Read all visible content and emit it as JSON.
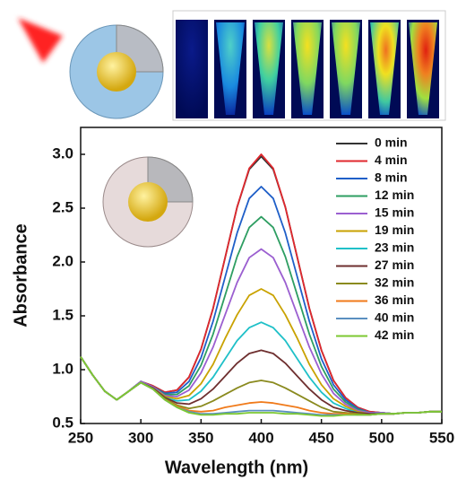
{
  "chart_data": {
    "type": "line",
    "x_label": "Wavelength (nm)",
    "y_label": "Absorbance",
    "x": [
      250,
      260,
      270,
      280,
      290,
      300,
      310,
      320,
      330,
      340,
      350,
      360,
      370,
      380,
      390,
      400,
      410,
      420,
      430,
      440,
      450,
      460,
      470,
      480,
      490,
      500,
      510,
      520,
      530,
      540,
      550
    ],
    "xlim": [
      250,
      550
    ],
    "xticks": [
      250,
      300,
      350,
      400,
      450,
      500,
      550
    ],
    "ylim": [
      0.5,
      3.25
    ],
    "yticks": [
      0.5,
      {
        "value": 1,
        "label": "1.0"
      },
      1.5,
      {
        "value": 2,
        "label": "2.0"
      },
      2.5,
      {
        "value": 3,
        "label": "3.0"
      }
    ],
    "legend": "upper-right",
    "series": [
      {
        "name": "0 min",
        "color": "#333333",
        "values": [
          1.12,
          0.95,
          0.8,
          0.72,
          0.8,
          0.89,
          0.85,
          0.79,
          0.81,
          0.93,
          1.19,
          1.57,
          2.04,
          2.51,
          2.86,
          2.98,
          2.86,
          2.51,
          2.04,
          1.57,
          1.18,
          0.9,
          0.74,
          0.65,
          0.61,
          0.6,
          0.59,
          0.6,
          0.6,
          0.61,
          0.61
        ]
      },
      {
        "name": "4 min",
        "color": "#e0282e",
        "values": [
          1.12,
          0.95,
          0.8,
          0.72,
          0.8,
          0.89,
          0.85,
          0.79,
          0.81,
          0.93,
          1.19,
          1.57,
          2.04,
          2.51,
          2.87,
          3.0,
          2.87,
          2.51,
          2.04,
          1.57,
          1.18,
          0.9,
          0.74,
          0.65,
          0.61,
          0.6,
          0.59,
          0.6,
          0.6,
          0.61,
          0.61
        ]
      },
      {
        "name": "8 min",
        "color": "#1f5fc8",
        "values": [
          1.12,
          0.95,
          0.8,
          0.72,
          0.8,
          0.89,
          0.84,
          0.78,
          0.79,
          0.89,
          1.11,
          1.45,
          1.86,
          2.27,
          2.59,
          2.7,
          2.59,
          2.27,
          1.86,
          1.45,
          1.1,
          0.86,
          0.72,
          0.64,
          0.6,
          0.6,
          0.59,
          0.6,
          0.6,
          0.61,
          0.61
        ]
      },
      {
        "name": "12 min",
        "color": "#2e9e62",
        "values": [
          1.12,
          0.95,
          0.8,
          0.72,
          0.8,
          0.89,
          0.84,
          0.77,
          0.77,
          0.85,
          1.04,
          1.33,
          1.69,
          2.05,
          2.32,
          2.42,
          2.32,
          2.05,
          1.69,
          1.33,
          1.03,
          0.82,
          0.7,
          0.63,
          0.6,
          0.6,
          0.59,
          0.6,
          0.6,
          0.61,
          0.61
        ]
      },
      {
        "name": "15 min",
        "color": "#9b5fd0",
        "values": [
          1.12,
          0.95,
          0.8,
          0.72,
          0.8,
          0.89,
          0.84,
          0.76,
          0.75,
          0.81,
          0.97,
          1.21,
          1.51,
          1.81,
          2.04,
          2.12,
          2.04,
          1.81,
          1.51,
          1.21,
          0.96,
          0.78,
          0.68,
          0.62,
          0.6,
          0.6,
          0.59,
          0.6,
          0.6,
          0.61,
          0.61
        ]
      },
      {
        "name": "19 min",
        "color": "#c9a200",
        "values": [
          1.12,
          0.95,
          0.8,
          0.72,
          0.8,
          0.88,
          0.83,
          0.75,
          0.73,
          0.76,
          0.87,
          1.05,
          1.29,
          1.51,
          1.69,
          1.75,
          1.69,
          1.51,
          1.29,
          1.05,
          0.86,
          0.73,
          0.66,
          0.61,
          0.59,
          0.59,
          0.59,
          0.6,
          0.6,
          0.61,
          0.61
        ]
      },
      {
        "name": "23 min",
        "color": "#1fc0c8",
        "values": [
          1.12,
          0.95,
          0.8,
          0.72,
          0.8,
          0.88,
          0.83,
          0.74,
          0.71,
          0.72,
          0.8,
          0.93,
          1.1,
          1.27,
          1.39,
          1.44,
          1.39,
          1.27,
          1.1,
          0.93,
          0.79,
          0.69,
          0.64,
          0.6,
          0.59,
          0.59,
          0.59,
          0.6,
          0.6,
          0.61,
          0.61
        ]
      },
      {
        "name": "27 min",
        "color": "#6e2f2f",
        "values": [
          1.12,
          0.95,
          0.8,
          0.72,
          0.8,
          0.88,
          0.83,
          0.74,
          0.69,
          0.68,
          0.73,
          0.82,
          0.94,
          1.06,
          1.15,
          1.18,
          1.15,
          1.06,
          0.94,
          0.82,
          0.72,
          0.65,
          0.62,
          0.6,
          0.59,
          0.59,
          0.59,
          0.6,
          0.6,
          0.61,
          0.61
        ]
      },
      {
        "name": "32 min",
        "color": "#8a8a1e",
        "values": [
          1.12,
          0.95,
          0.8,
          0.72,
          0.8,
          0.88,
          0.82,
          0.73,
          0.67,
          0.64,
          0.66,
          0.71,
          0.77,
          0.83,
          0.88,
          0.9,
          0.88,
          0.83,
          0.77,
          0.71,
          0.65,
          0.61,
          0.6,
          0.59,
          0.58,
          0.59,
          0.59,
          0.6,
          0.6,
          0.61,
          0.61
        ]
      },
      {
        "name": "36 min",
        "color": "#f07a1a",
        "values": [
          1.12,
          0.95,
          0.8,
          0.72,
          0.8,
          0.88,
          0.82,
          0.72,
          0.66,
          0.62,
          0.61,
          0.62,
          0.65,
          0.67,
          0.69,
          0.7,
          0.69,
          0.67,
          0.65,
          0.62,
          0.6,
          0.59,
          0.59,
          0.58,
          0.58,
          0.59,
          0.59,
          0.6,
          0.6,
          0.61,
          0.61
        ]
      },
      {
        "name": "40 min",
        "color": "#5b8fc0",
        "values": [
          1.12,
          0.95,
          0.8,
          0.72,
          0.8,
          0.88,
          0.82,
          0.72,
          0.65,
          0.61,
          0.59,
          0.59,
          0.6,
          0.61,
          0.62,
          0.62,
          0.62,
          0.61,
          0.6,
          0.59,
          0.58,
          0.58,
          0.58,
          0.58,
          0.58,
          0.59,
          0.59,
          0.6,
          0.6,
          0.61,
          0.61
        ]
      },
      {
        "name": "42 min",
        "color": "#7cc832",
        "values": [
          1.12,
          0.95,
          0.8,
          0.72,
          0.8,
          0.88,
          0.82,
          0.72,
          0.65,
          0.6,
          0.58,
          0.58,
          0.59,
          0.59,
          0.6,
          0.6,
          0.6,
          0.59,
          0.59,
          0.58,
          0.57,
          0.57,
          0.58,
          0.58,
          0.58,
          0.59,
          0.59,
          0.6,
          0.6,
          0.61,
          0.61
        ]
      }
    ]
  }
}
